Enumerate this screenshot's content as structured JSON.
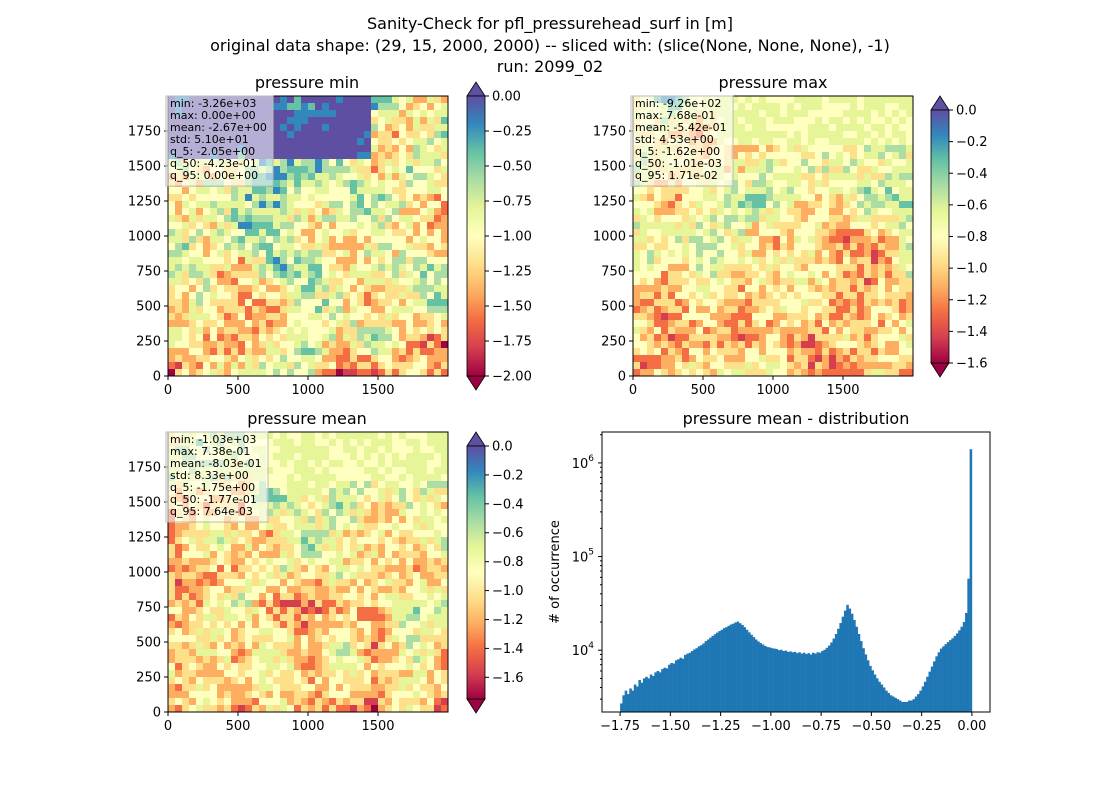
{
  "figure": {
    "title_lines": [
      "Sanity-Check for pfl_pressurehead_surf in [m]",
      "original data shape: (29, 15, 2000, 2000) -- sliced with: (slice(None, None, None), -1)",
      "run: 2099_02"
    ]
  },
  "colors": {
    "spectral": [
      "#9e0142",
      "#d53e4f",
      "#f46d43",
      "#fdae61",
      "#fee08b",
      "#ffffbf",
      "#e6f598",
      "#abdda4",
      "#66c2a5",
      "#3288bd",
      "#5e4fa2"
    ],
    "hist_bar": "#1f77b4",
    "axis": "#000000"
  },
  "chart_data": [
    {
      "type": "heatmap",
      "title": "pressure min",
      "xlim": [
        0,
        2000
      ],
      "ylim": [
        0,
        2000
      ],
      "xticks": [
        "0",
        "500",
        "1000",
        "1500"
      ],
      "yticks": [
        "0",
        "250",
        "500",
        "750",
        "1000",
        "1250",
        "1500",
        "1750"
      ],
      "colorbar": {
        "range": [
          -2.0,
          0.0
        ],
        "ticks": [
          "0.00",
          "−0.25",
          "−0.50",
          "−0.75",
          "−1.00",
          "−1.25",
          "−1.50",
          "−1.75",
          "−2.00"
        ],
        "extend": "both",
        "tick_values": [
          0.0,
          -0.25,
          -0.5,
          -0.75,
          -1.0,
          -1.25,
          -1.5,
          -1.75,
          -2.0
        ]
      },
      "stats": [
        "min: -3.26e+03",
        "max: 0.00e+00",
        "mean: -2.67e+00",
        "std: 5.10e+01",
        "q_5: -2.05e+00",
        "q_50: -4.23e-01",
        "q_95: 0.00e+00"
      ]
    },
    {
      "type": "heatmap",
      "title": "pressure max",
      "xlim": [
        0,
        2000
      ],
      "ylim": [
        0,
        2000
      ],
      "xticks": [
        "0",
        "500",
        "1000",
        "1500"
      ],
      "yticks": [
        "0",
        "250",
        "500",
        "750",
        "1000",
        "1250",
        "1500",
        "1750"
      ],
      "colorbar": {
        "range": [
          -1.6,
          0.0
        ],
        "ticks": [
          "0.0",
          "−0.2",
          "−0.4",
          "−0.6",
          "−0.8",
          "−1.0",
          "−1.2",
          "−1.4",
          "−1.6"
        ],
        "extend": "both",
        "tick_values": [
          0.0,
          -0.2,
          -0.4,
          -0.6,
          -0.8,
          -1.0,
          -1.2,
          -1.4,
          -1.6
        ]
      },
      "stats": [
        "min: -9.26e+02",
        "max: 7.68e-01",
        "mean: -5.42e-01",
        "std: 4.53e+00",
        "q_5: -1.62e+00",
        "q_50: -1.01e-03",
        "q_95: 1.71e-02"
      ]
    },
    {
      "type": "heatmap",
      "title": "pressure mean",
      "xlim": [
        0,
        2000
      ],
      "ylim": [
        0,
        2000
      ],
      "xticks": [
        "0",
        "500",
        "1000",
        "1500"
      ],
      "yticks": [
        "0",
        "250",
        "500",
        "750",
        "1000",
        "1250",
        "1500",
        "1750"
      ],
      "colorbar": {
        "range": [
          -1.75,
          0.0
        ],
        "ticks": [
          "0.0",
          "−0.2",
          "−0.4",
          "−0.6",
          "−0.8",
          "−1.0",
          "−1.2",
          "−1.4",
          "−1.6"
        ],
        "extend": "both",
        "tick_values": [
          0.0,
          -0.2,
          -0.4,
          -0.6,
          -0.8,
          -1.0,
          -1.2,
          -1.4,
          -1.6
        ]
      },
      "stats": [
        "min: -1.03e+03",
        "max: 7.38e-01",
        "mean: -8.03e-01",
        "std: 8.33e+00",
        "q_5: -1.75e+00",
        "q_50: -1.77e-01",
        "q_95: 7.64e-03"
      ]
    },
    {
      "type": "bar",
      "title": "pressure mean - distribution",
      "ylabel": "# of occurrence",
      "yscale": "log",
      "xlim": [
        -1.84,
        0.09
      ],
      "ylim_log10": [
        3.34,
        6.33
      ],
      "xticks": [
        {
          "value": -1.75,
          "label": "−1.75"
        },
        {
          "value": -1.5,
          "label": "−1.50"
        },
        {
          "value": -1.25,
          "label": "−1.25"
        },
        {
          "value": -1.0,
          "label": "−1.00"
        },
        {
          "value": -0.75,
          "label": "−0.75"
        },
        {
          "value": -0.5,
          "label": "−0.50"
        },
        {
          "value": -0.25,
          "label": "−0.25"
        },
        {
          "value": 0.0,
          "label": "0.00"
        }
      ],
      "yticks": [
        {
          "value": 10000,
          "base": "10",
          "exp": "4"
        },
        {
          "value": 100000,
          "base": "10",
          "exp": "5"
        },
        {
          "value": 1000000,
          "base": "10",
          "exp": "6"
        }
      ],
      "bin_range": [
        -1.75,
        0.0
      ],
      "values": [
        2700,
        3300,
        3700,
        3400,
        3900,
        3700,
        4300,
        4100,
        4800,
        4500,
        5000,
        5200,
        5000,
        5500,
        5300,
        5800,
        6000,
        5800,
        6300,
        6500,
        6400,
        7000,
        7300,
        7200,
        7800,
        8000,
        8300,
        8100,
        8900,
        9200,
        9400,
        9800,
        10200,
        10500,
        11000,
        11300,
        11800,
        12500,
        13000,
        13600,
        14200,
        14800,
        15400,
        16000,
        16500,
        17200,
        17600,
        18200,
        18800,
        19200,
        19800,
        20200,
        19400,
        18600,
        17600,
        16500,
        15500,
        14600,
        13800,
        13000,
        12400,
        11900,
        11500,
        11100,
        10800,
        10700,
        10500,
        10400,
        10300,
        10000,
        10100,
        9800,
        9900,
        9600,
        9700,
        9500,
        9600,
        9300,
        9500,
        9200,
        9400,
        9100,
        9300,
        9000,
        9400,
        9200,
        9500,
        9400,
        9800,
        10100,
        10600,
        11200,
        12100,
        13300,
        14900,
        16900,
        19500,
        22800,
        26500,
        30500,
        27800,
        24500,
        21000,
        17800,
        14900,
        12500,
        10500,
        9000,
        7800,
        6800,
        6100,
        5500,
        5000,
        4600,
        4300,
        4000,
        3700,
        3500,
        3300,
        3200,
        3100,
        3000,
        2900,
        2800,
        2800,
        2800,
        2900,
        2900,
        3000,
        3200,
        3400,
        3700,
        4100,
        4600,
        5200,
        5900,
        6700,
        7600,
        8600,
        9500,
        10400,
        11000,
        11600,
        12200,
        12800,
        13400,
        14200,
        15100,
        16300,
        17800,
        20000,
        25000,
        58000,
        1400000
      ]
    }
  ]
}
